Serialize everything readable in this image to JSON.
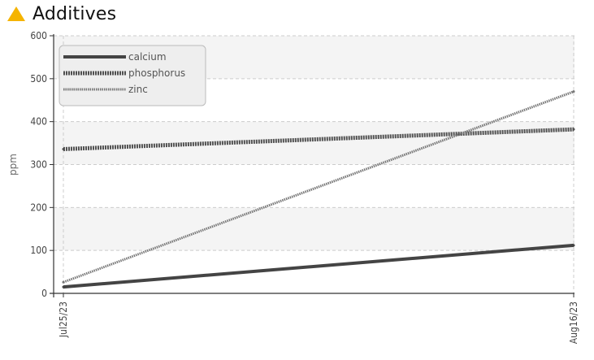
{
  "header": {
    "title": "Additives",
    "icon": "warning-triangle-icon",
    "icon_color": "#f5b400"
  },
  "chart_data": {
    "type": "line",
    "title": "Additives",
    "xlabel": "",
    "ylabel": "ppm",
    "x": [
      "Jul25/23",
      "Aug16/23"
    ],
    "ylim": [
      0,
      600
    ],
    "yticks": [
      0,
      100,
      200,
      300,
      400,
      500,
      600
    ],
    "grid": true,
    "legend_position": "top-left",
    "series": [
      {
        "name": "calcium",
        "values": [
          15,
          112
        ],
        "color": "#444444",
        "style": "solid"
      },
      {
        "name": "phosphorus",
        "values": [
          336,
          382
        ],
        "color": "#505050",
        "style": "dense-dotted"
      },
      {
        "name": "zinc",
        "values": [
          26,
          470
        ],
        "color": "#777777",
        "style": "dotted"
      }
    ]
  }
}
